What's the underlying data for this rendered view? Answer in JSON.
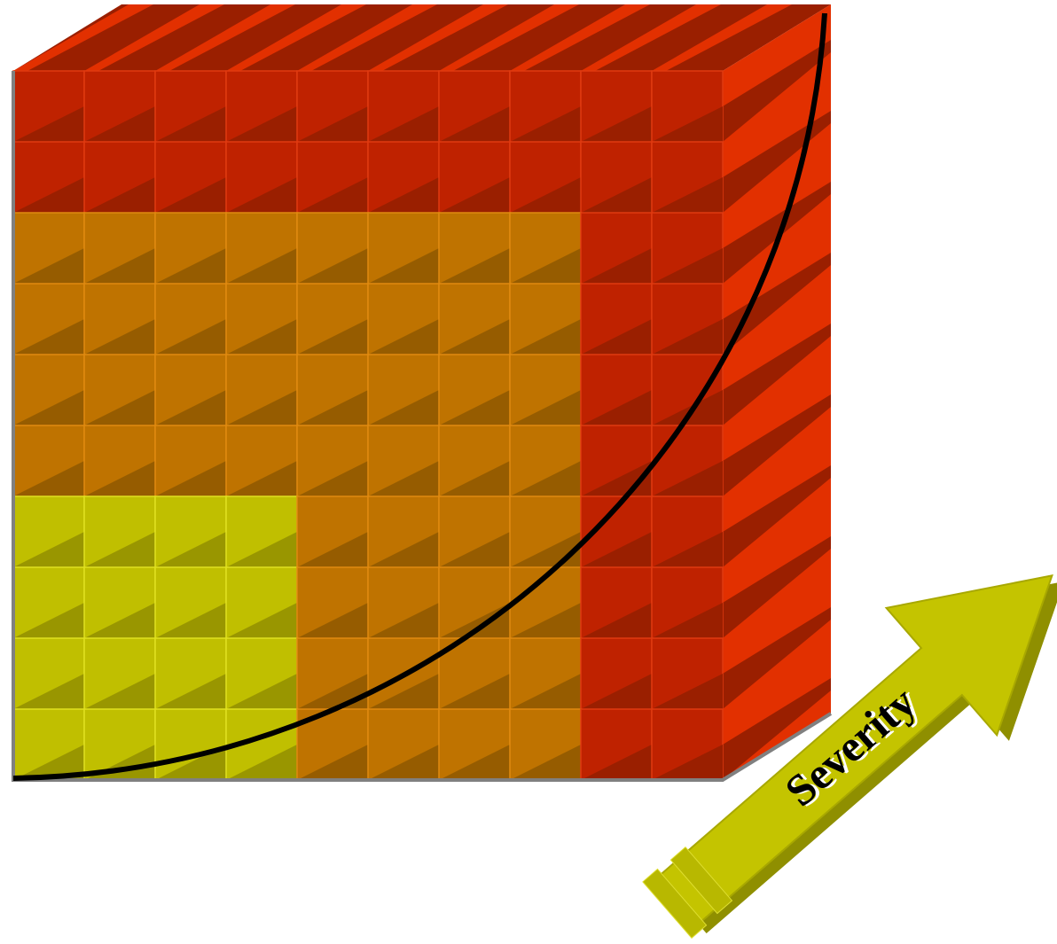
{
  "arrow": {
    "label": "Severity"
  }
}
